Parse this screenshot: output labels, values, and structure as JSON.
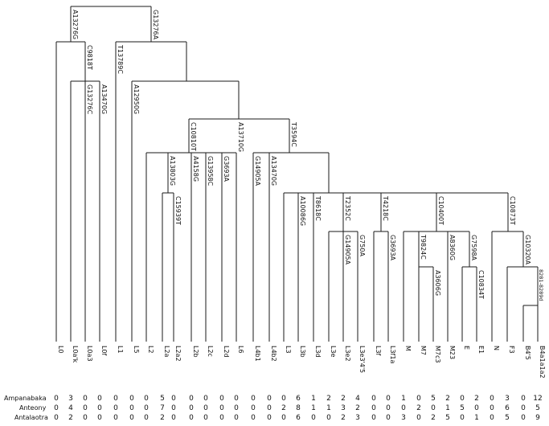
{
  "leaves": [
    "L0",
    "L0a'k",
    "L0a3",
    "L0f",
    "L1",
    "L5",
    "L2",
    "L2a",
    "L2a2",
    "L2b",
    "L2c",
    "L2d",
    "L6",
    "L4b1",
    "L4b2",
    "L3",
    "L3b",
    "L3d",
    "L3e",
    "L3e2",
    "L3e3'4'5",
    "L3f",
    "L3f1a",
    "M",
    "M7",
    "M7c3",
    "M23",
    "E",
    "E1",
    "N",
    "F3",
    "B4'5",
    "B4a1a1a2"
  ],
  "mutations": {
    "root_left": "A13276G",
    "root_right": "G13276A",
    "l0ak_clade": "C9818T",
    "l0a3": "G13276C",
    "l0f": "A13470G",
    "l1_rest": "T13789C",
    "l5_rest": "A12950G",
    "l2_l6": "C10810T",
    "l6": "A13710G",
    "l4_l3n": "T3594C",
    "l2a": "A13803G",
    "l2a2": "C15939T",
    "l2b": "A4158G",
    "l2c": "G13958C",
    "l2d": "G3693A",
    "l4b1": "G14905A",
    "l4b2": "A13470G",
    "l3b": "A10086G",
    "l3d": "T8618C",
    "l3e": "T2352C",
    "l3e2": "G14905A",
    "l3e345": "G750A",
    "l3f": "T4218C",
    "l3f1a": "G3693A",
    "m": "C10400T",
    "m7": "T9824C",
    "m7c3": "A3606G",
    "m23": "A8360G",
    "e": "G7598A",
    "e1": "C10834T",
    "n": "C10873T",
    "f3": "G10320A",
    "b4a": "8281-8289d"
  },
  "population_rows": [
    {
      "name": "Ampanabaka",
      "counts": [
        "0",
        "3",
        "0",
        "0",
        "0",
        "0",
        "0",
        "5",
        "0",
        "0",
        "0",
        "0",
        "0",
        "0",
        "0",
        "0",
        "6",
        "1",
        "2",
        "2",
        "4",
        "0",
        "0",
        "1",
        "0",
        "5",
        "2",
        "0",
        "2",
        "0",
        "3",
        "0",
        "12"
      ]
    },
    {
      "name": "Anteony",
      "counts": [
        "0",
        "4",
        "0",
        "0",
        "0",
        "0",
        "0",
        "7",
        "0",
        "0",
        "0",
        "0",
        "0",
        "0",
        "0",
        "2",
        "8",
        "1",
        "1",
        "3",
        "2",
        "0",
        "0",
        "0",
        "2",
        "0",
        "1",
        "5",
        "0",
        "0",
        "6",
        "0",
        "5"
      ]
    },
    {
      "name": "Antalaotra",
      "counts": [
        "0",
        "2",
        "0",
        "0",
        "0",
        "0",
        "0",
        "2",
        "0",
        "0",
        "0",
        "0",
        "0",
        "0",
        "0",
        "0",
        "6",
        "0",
        "0",
        "2",
        "3",
        "0",
        "0",
        "3",
        "0",
        "2",
        "5",
        "0",
        "1",
        "0",
        "5",
        "0",
        "9"
      ]
    }
  ]
}
